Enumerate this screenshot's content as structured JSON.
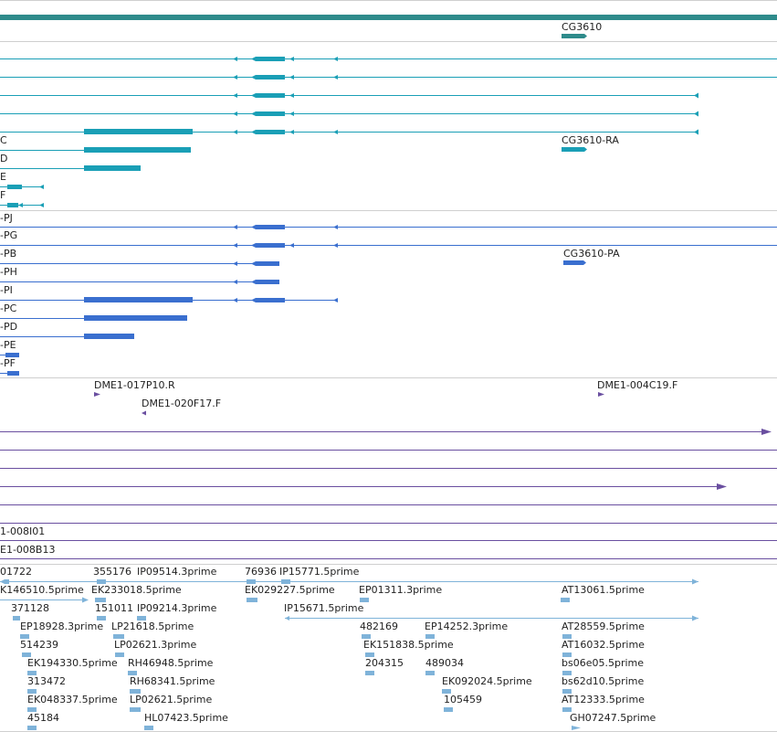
{
  "colors": {
    "gene": "#2e8b8b",
    "transcript_cyan": "#1a9fb6",
    "transcript_blue": "#3a6fcf",
    "clone": "#6a4fa0",
    "est": "#7fb3d9",
    "separator": "#cccccc"
  },
  "gene": {
    "name": "CG3610"
  },
  "cyan_transcripts": {
    "labels": [
      "C",
      "D",
      "E",
      "F",
      "CG3610-RA"
    ]
  },
  "blue_transcripts": {
    "labels": [
      "-PJ",
      "-PG",
      "-PB",
      "-PH",
      "-PI",
      "-PC",
      "-PD",
      "-PE",
      "-PF",
      "CG3610-PA"
    ]
  },
  "clones": {
    "labels": [
      "DME1-017P10.R",
      "DME1-020F17.F",
      "DME1-004C19.F",
      "1-008I01",
      "E1-008B13"
    ]
  },
  "ests": {
    "labels": [
      "01722",
      "355176",
      "IP09514.3prime",
      "76936",
      "IP15771.5prime",
      "K146510.5prime",
      "EK233018.5prime",
      "EK029227.5prime",
      "EP01311.3prime",
      "AT13061.5prime",
      "371128",
      "151011",
      "IP09214.3prime",
      "IP15671.5prime",
      "EP18928.3prime",
      "LP21618.5prime",
      "482169",
      "EP14252.3prime",
      "AT28559.5prime",
      "514239",
      "LP02621.3prime",
      "EK151838.5prime",
      "AT16032.5prime",
      "EK194330.5prime",
      "RH46948.5prime",
      "204315",
      "489034",
      "bs06e05.5prime",
      "313472",
      "RH68341.5prime",
      "EK092024.5prime",
      "bs62d10.5prime",
      "EK048337.5prime",
      "LP02621.5prime",
      "105459",
      "AT12333.5prime",
      "45184",
      "HL07423.5prime",
      "GH07247.5prime"
    ]
  }
}
